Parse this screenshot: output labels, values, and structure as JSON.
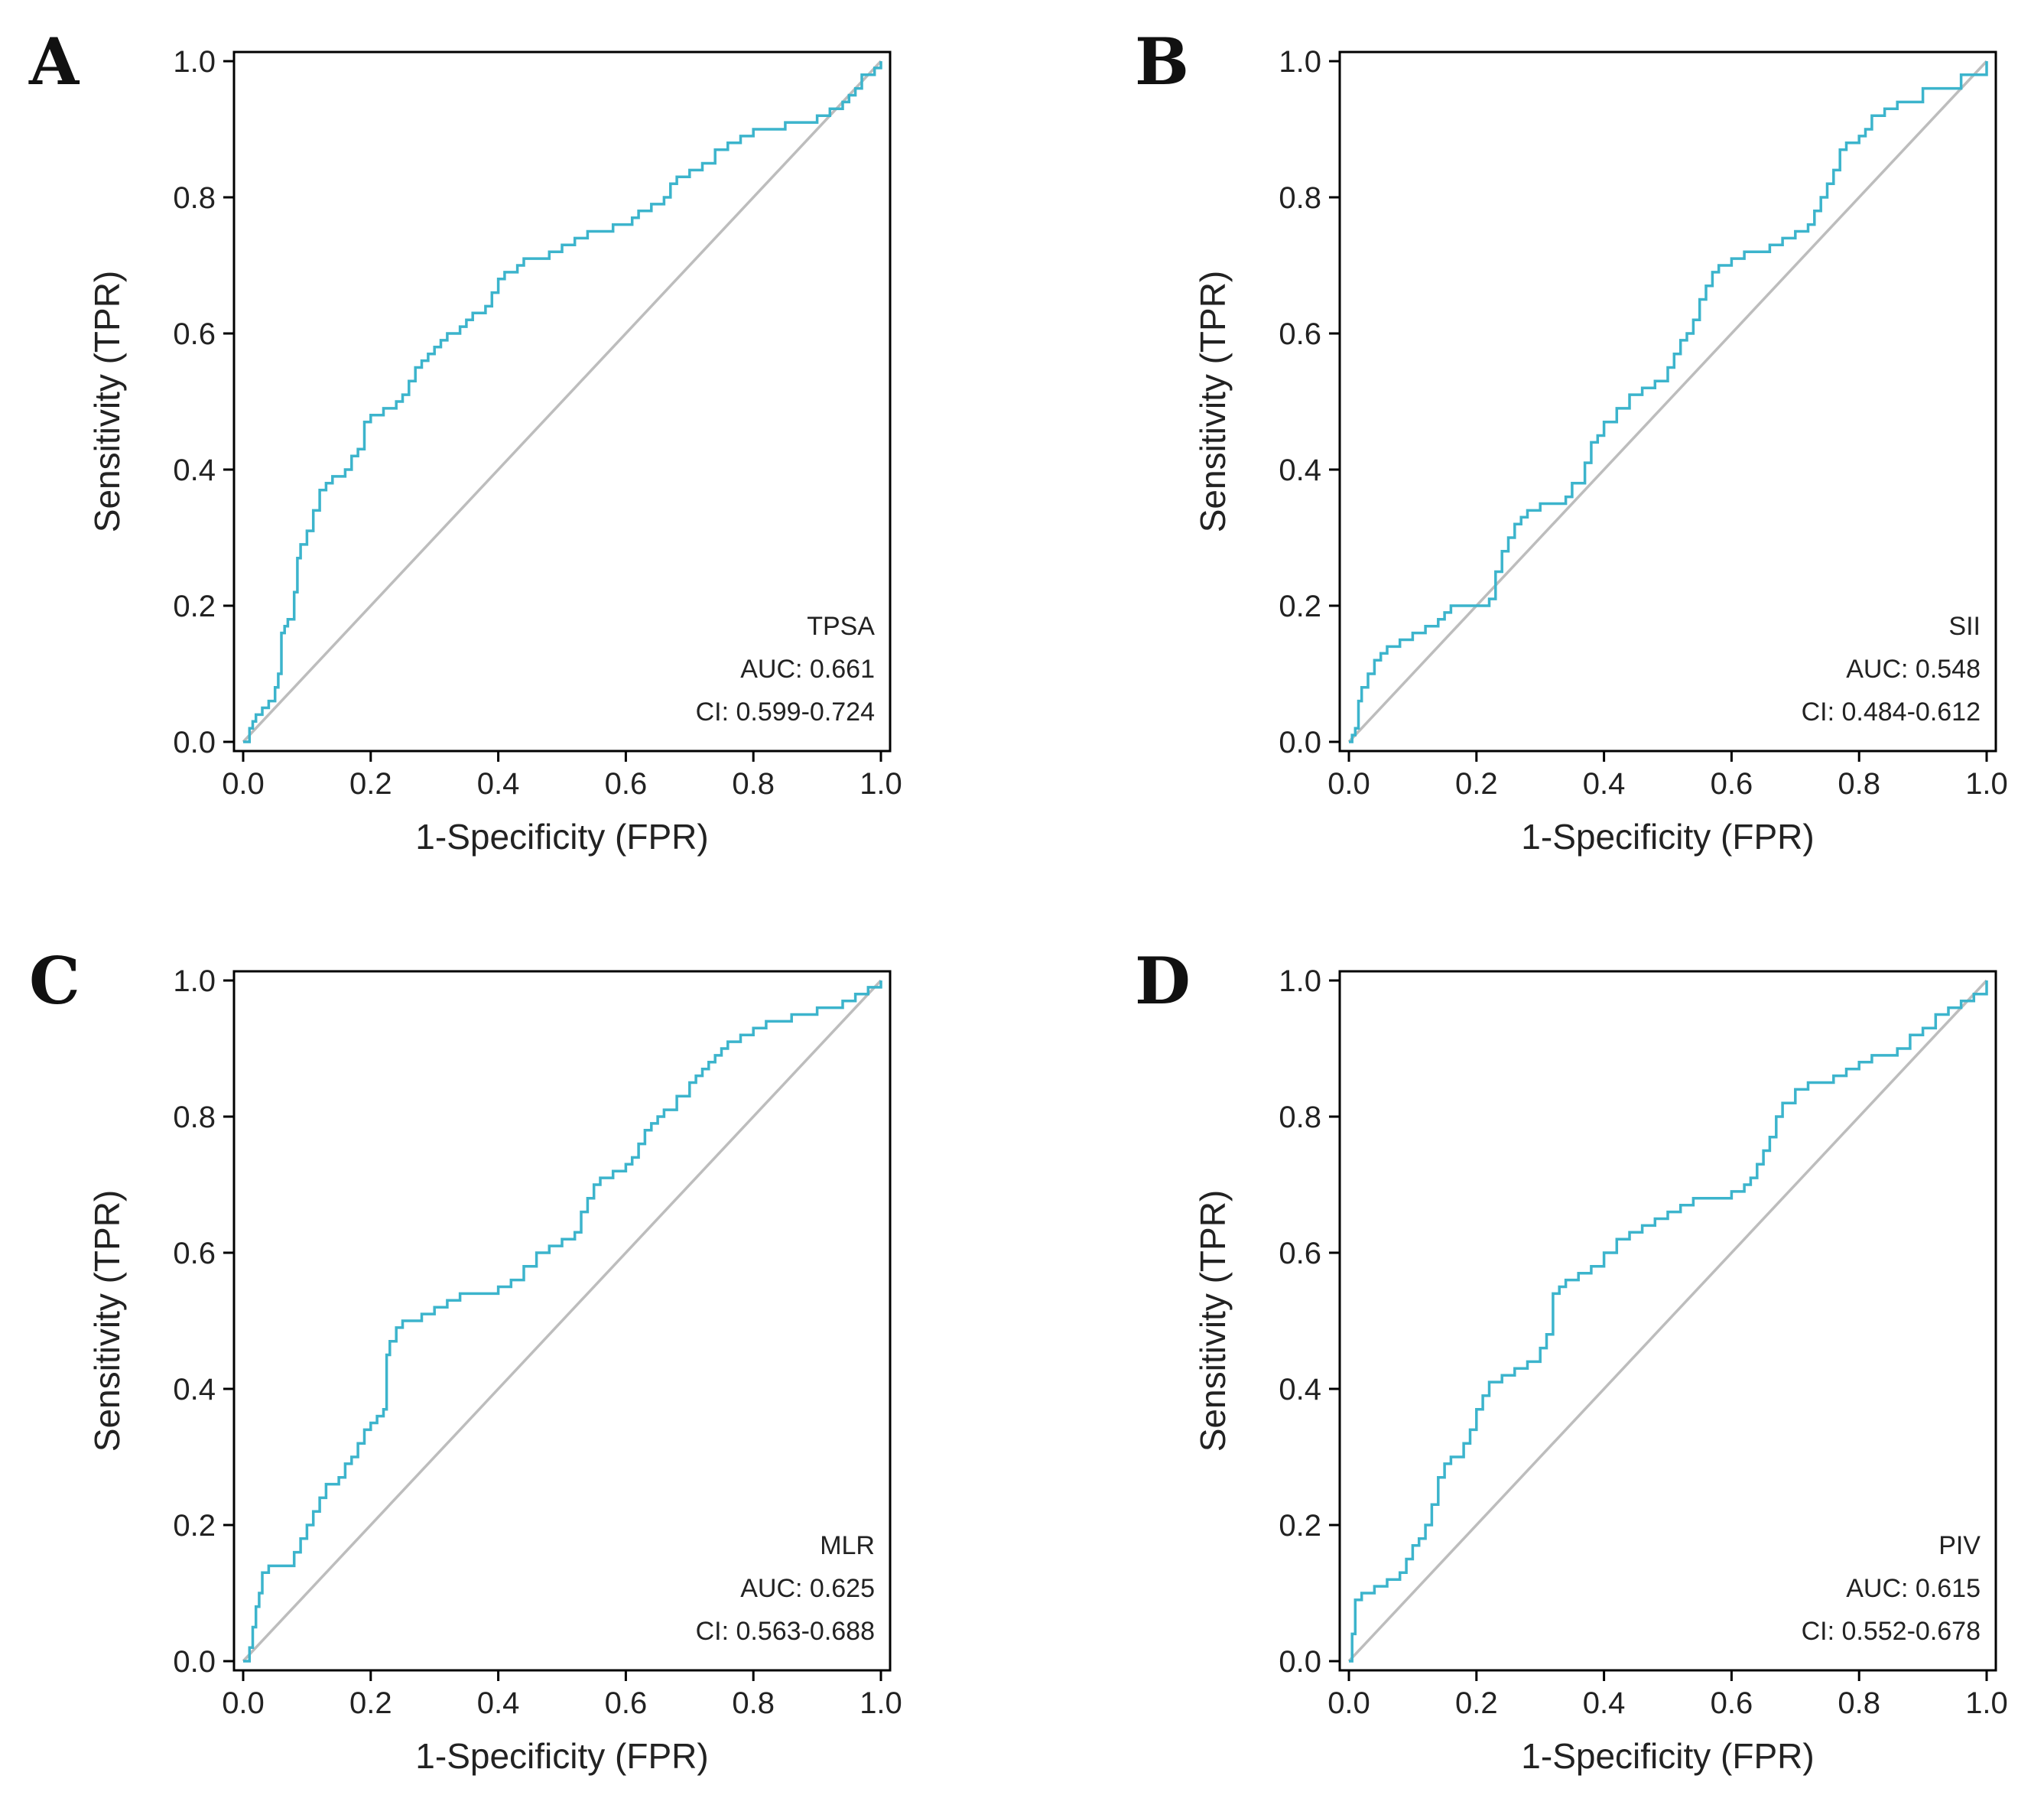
{
  "colors": {
    "roc": "#3cb4cc",
    "diagonal": "#bdbdbd",
    "axis": "#000000"
  },
  "chart_data": [
    {
      "panel": "A",
      "type": "line",
      "xlabel": "1-Specificity (FPR)",
      "ylabel": "Sensitivity (TPR)",
      "xlim": [
        0,
        1
      ],
      "ylim": [
        0,
        1
      ],
      "xticks": [
        "0.0",
        "0.2",
        "0.4",
        "0.6",
        "0.8",
        "1.0"
      ],
      "yticks": [
        "0.0",
        "0.2",
        "0.4",
        "0.6",
        "0.8",
        "1.0"
      ],
      "legend": {
        "name": "TPSA",
        "auc": "AUC: 0.661",
        "ci": "CI: 0.599-0.724"
      },
      "series": [
        {
          "name": "TPSA",
          "x": [
            0.0,
            0.01,
            0.015,
            0.02,
            0.03,
            0.04,
            0.05,
            0.055,
            0.06,
            0.065,
            0.07,
            0.08,
            0.085,
            0.09,
            0.1,
            0.11,
            0.12,
            0.13,
            0.14,
            0.16,
            0.17,
            0.18,
            0.19,
            0.2,
            0.21,
            0.22,
            0.24,
            0.25,
            0.26,
            0.27,
            0.28,
            0.29,
            0.3,
            0.31,
            0.32,
            0.34,
            0.35,
            0.36,
            0.38,
            0.39,
            0.4,
            0.41,
            0.42,
            0.43,
            0.44,
            0.46,
            0.48,
            0.5,
            0.52,
            0.54,
            0.56,
            0.58,
            0.6,
            0.61,
            0.62,
            0.63,
            0.64,
            0.66,
            0.67,
            0.68,
            0.7,
            0.72,
            0.74,
            0.76,
            0.78,
            0.8,
            0.85,
            0.9,
            0.92,
            0.94,
            0.95,
            0.96,
            0.97,
            0.99,
            1.0
          ],
          "y": [
            0.0,
            0.02,
            0.03,
            0.04,
            0.05,
            0.06,
            0.08,
            0.1,
            0.16,
            0.17,
            0.18,
            0.22,
            0.27,
            0.29,
            0.31,
            0.34,
            0.37,
            0.38,
            0.39,
            0.4,
            0.42,
            0.43,
            0.47,
            0.48,
            0.48,
            0.49,
            0.5,
            0.51,
            0.53,
            0.55,
            0.56,
            0.57,
            0.58,
            0.59,
            0.6,
            0.61,
            0.62,
            0.63,
            0.64,
            0.66,
            0.68,
            0.69,
            0.69,
            0.7,
            0.71,
            0.71,
            0.72,
            0.73,
            0.74,
            0.75,
            0.75,
            0.76,
            0.76,
            0.77,
            0.78,
            0.78,
            0.79,
            0.8,
            0.82,
            0.83,
            0.84,
            0.85,
            0.87,
            0.88,
            0.89,
            0.9,
            0.91,
            0.92,
            0.93,
            0.94,
            0.95,
            0.96,
            0.98,
            0.99,
            1.0
          ]
        },
        {
          "name": "reference",
          "x": [
            0,
            1
          ],
          "y": [
            0,
            1
          ]
        }
      ]
    },
    {
      "panel": "B",
      "type": "line",
      "xlabel": "1-Specificity (FPR)",
      "ylabel": "Sensitivity (TPR)",
      "xlim": [
        0,
        1
      ],
      "ylim": [
        0,
        1
      ],
      "xticks": [
        "0.0",
        "0.2",
        "0.4",
        "0.6",
        "0.8",
        "1.0"
      ],
      "yticks": [
        "0.0",
        "0.2",
        "0.4",
        "0.6",
        "0.8",
        "1.0"
      ],
      "legend": {
        "name": "SII",
        "auc": "AUC: 0.548",
        "ci": "CI: 0.484-0.612"
      },
      "series": [
        {
          "name": "SII",
          "x": [
            0.0,
            0.005,
            0.01,
            0.015,
            0.02,
            0.03,
            0.04,
            0.05,
            0.06,
            0.08,
            0.1,
            0.12,
            0.14,
            0.15,
            0.16,
            0.2,
            0.22,
            0.23,
            0.24,
            0.25,
            0.26,
            0.27,
            0.28,
            0.3,
            0.32,
            0.34,
            0.35,
            0.37,
            0.38,
            0.39,
            0.4,
            0.42,
            0.44,
            0.46,
            0.48,
            0.5,
            0.51,
            0.52,
            0.53,
            0.54,
            0.55,
            0.56,
            0.57,
            0.58,
            0.6,
            0.62,
            0.64,
            0.66,
            0.68,
            0.7,
            0.72,
            0.73,
            0.74,
            0.75,
            0.76,
            0.77,
            0.78,
            0.8,
            0.81,
            0.82,
            0.84,
            0.86,
            0.9,
            0.96,
            0.98,
            1.0
          ],
          "y": [
            0.0,
            0.01,
            0.02,
            0.06,
            0.08,
            0.1,
            0.12,
            0.13,
            0.14,
            0.15,
            0.16,
            0.17,
            0.18,
            0.19,
            0.2,
            0.2,
            0.21,
            0.25,
            0.28,
            0.3,
            0.32,
            0.33,
            0.34,
            0.35,
            0.35,
            0.36,
            0.38,
            0.41,
            0.44,
            0.45,
            0.47,
            0.49,
            0.51,
            0.52,
            0.53,
            0.55,
            0.57,
            0.59,
            0.6,
            0.62,
            0.65,
            0.67,
            0.69,
            0.7,
            0.71,
            0.72,
            0.72,
            0.73,
            0.74,
            0.75,
            0.76,
            0.78,
            0.8,
            0.82,
            0.84,
            0.87,
            0.88,
            0.89,
            0.9,
            0.92,
            0.93,
            0.94,
            0.96,
            0.98,
            0.98,
            1.0
          ]
        },
        {
          "name": "reference",
          "x": [
            0,
            1
          ],
          "y": [
            0,
            1
          ]
        }
      ]
    },
    {
      "panel": "C",
      "type": "line",
      "xlabel": "1-Specificity (FPR)",
      "ylabel": "Sensitivity (TPR)",
      "xlim": [
        0,
        1
      ],
      "ylim": [
        0,
        1
      ],
      "xticks": [
        "0.0",
        "0.2",
        "0.4",
        "0.6",
        "0.8",
        "1.0"
      ],
      "yticks": [
        "0.0",
        "0.2",
        "0.4",
        "0.6",
        "0.8",
        "1.0"
      ],
      "legend": {
        "name": "MLR",
        "auc": "AUC: 0.625",
        "ci": "CI: 0.563-0.688"
      },
      "series": [
        {
          "name": "MLR",
          "x": [
            0.0,
            0.01,
            0.015,
            0.02,
            0.025,
            0.03,
            0.04,
            0.06,
            0.08,
            0.09,
            0.1,
            0.11,
            0.12,
            0.13,
            0.15,
            0.16,
            0.17,
            0.18,
            0.19,
            0.2,
            0.21,
            0.22,
            0.225,
            0.23,
            0.24,
            0.25,
            0.26,
            0.28,
            0.3,
            0.32,
            0.34,
            0.36,
            0.38,
            0.4,
            0.42,
            0.44,
            0.46,
            0.48,
            0.5,
            0.52,
            0.53,
            0.54,
            0.55,
            0.56,
            0.58,
            0.6,
            0.61,
            0.62,
            0.63,
            0.64,
            0.65,
            0.66,
            0.68,
            0.7,
            0.71,
            0.72,
            0.73,
            0.74,
            0.75,
            0.76,
            0.78,
            0.8,
            0.82,
            0.86,
            0.9,
            0.94,
            0.96,
            0.98,
            1.0
          ],
          "y": [
            0.0,
            0.02,
            0.05,
            0.08,
            0.1,
            0.13,
            0.14,
            0.14,
            0.16,
            0.18,
            0.2,
            0.22,
            0.24,
            0.26,
            0.27,
            0.29,
            0.3,
            0.32,
            0.34,
            0.35,
            0.36,
            0.37,
            0.45,
            0.47,
            0.49,
            0.5,
            0.5,
            0.51,
            0.52,
            0.53,
            0.54,
            0.54,
            0.54,
            0.55,
            0.56,
            0.58,
            0.6,
            0.61,
            0.62,
            0.63,
            0.66,
            0.68,
            0.7,
            0.71,
            0.72,
            0.73,
            0.74,
            0.76,
            0.78,
            0.79,
            0.8,
            0.81,
            0.83,
            0.85,
            0.86,
            0.87,
            0.88,
            0.89,
            0.9,
            0.91,
            0.92,
            0.93,
            0.94,
            0.95,
            0.96,
            0.97,
            0.98,
            0.99,
            1.0
          ]
        },
        {
          "name": "reference",
          "x": [
            0,
            1
          ],
          "y": [
            0,
            1
          ]
        }
      ]
    },
    {
      "panel": "D",
      "type": "line",
      "xlabel": "1-Specificity (FPR)",
      "ylabel": "Sensitivity (TPR)",
      "xlim": [
        0,
        1
      ],
      "ylim": [
        0,
        1
      ],
      "xticks": [
        "0.0",
        "0.2",
        "0.4",
        "0.6",
        "0.8",
        "1.0"
      ],
      "yticks": [
        "0.0",
        "0.2",
        "0.4",
        "0.6",
        "0.8",
        "1.0"
      ],
      "legend": {
        "name": "PIV",
        "auc": "AUC: 0.615",
        "ci": "CI: 0.552-0.678"
      },
      "series": [
        {
          "name": "PIV",
          "x": [
            0.0,
            0.005,
            0.01,
            0.02,
            0.04,
            0.06,
            0.08,
            0.09,
            0.1,
            0.11,
            0.12,
            0.13,
            0.14,
            0.15,
            0.16,
            0.18,
            0.19,
            0.2,
            0.21,
            0.22,
            0.24,
            0.26,
            0.28,
            0.3,
            0.31,
            0.32,
            0.33,
            0.34,
            0.36,
            0.38,
            0.4,
            0.42,
            0.44,
            0.46,
            0.48,
            0.5,
            0.52,
            0.54,
            0.56,
            0.58,
            0.6,
            0.62,
            0.63,
            0.64,
            0.65,
            0.66,
            0.67,
            0.68,
            0.7,
            0.72,
            0.74,
            0.76,
            0.78,
            0.8,
            0.82,
            0.84,
            0.86,
            0.88,
            0.9,
            0.92,
            0.94,
            0.96,
            0.98,
            1.0
          ],
          "y": [
            0.0,
            0.04,
            0.09,
            0.1,
            0.11,
            0.12,
            0.13,
            0.15,
            0.17,
            0.18,
            0.2,
            0.23,
            0.27,
            0.29,
            0.3,
            0.32,
            0.34,
            0.37,
            0.39,
            0.41,
            0.42,
            0.43,
            0.44,
            0.46,
            0.48,
            0.54,
            0.55,
            0.56,
            0.57,
            0.58,
            0.6,
            0.62,
            0.63,
            0.64,
            0.65,
            0.66,
            0.67,
            0.68,
            0.68,
            0.68,
            0.69,
            0.7,
            0.71,
            0.73,
            0.75,
            0.77,
            0.8,
            0.82,
            0.84,
            0.85,
            0.85,
            0.86,
            0.87,
            0.88,
            0.89,
            0.89,
            0.9,
            0.92,
            0.93,
            0.95,
            0.96,
            0.97,
            0.98,
            1.0
          ]
        },
        {
          "name": "reference",
          "x": [
            0,
            1
          ],
          "y": [
            0,
            1
          ]
        }
      ]
    }
  ]
}
